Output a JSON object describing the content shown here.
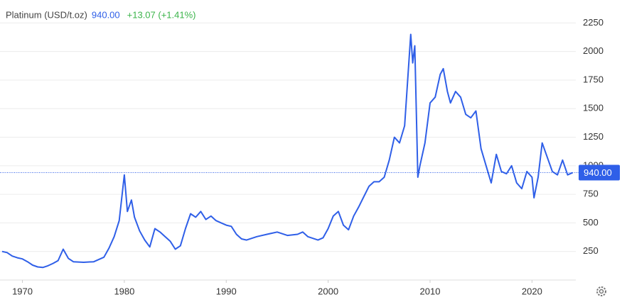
{
  "chart_data": {
    "type": "line",
    "title": "Platinum (USD/t.oz)",
    "last": {
      "value": 940,
      "label": "940.00"
    },
    "change": "+13.07 (+1.41%)",
    "xlim": [
      1967.8,
      2024.3
    ],
    "ylim": [
      0,
      2420
    ],
    "xticks": [
      1970,
      1980,
      1990,
      2000,
      2010,
      2020
    ],
    "yticks": [
      250,
      500,
      750,
      1000,
      1250,
      1500,
      1750,
      2000,
      2250
    ],
    "grid": true,
    "series": [
      {
        "name": "Platinum",
        "color": "#2f5fe8",
        "x": [
          1968,
          1968.5,
          1969,
          1969.5,
          1970,
          1970.5,
          1971,
          1971.5,
          1972,
          1972.5,
          1973,
          1973.5,
          1974,
          1974.5,
          1975,
          1976,
          1977,
          1978,
          1978.5,
          1979,
          1979.5,
          1980,
          1980.3,
          1980.7,
          1981,
          1981.5,
          1982,
          1982.5,
          1983,
          1983.5,
          1984,
          1984.5,
          1985,
          1985.5,
          1986,
          1986.5,
          1987,
          1987.5,
          1988,
          1988.5,
          1989,
          1989.5,
          1990,
          1990.5,
          1991,
          1991.5,
          1992,
          1993,
          1994,
          1995,
          1996,
          1997,
          1997.5,
          1998,
          1999,
          1999.5,
          2000,
          2000.5,
          2001,
          2001.5,
          2002,
          2002.5,
          2003,
          2004,
          2004.5,
          2005,
          2005.5,
          2006,
          2006.5,
          2007,
          2007.5,
          2008.1,
          2008.3,
          2008.5,
          2008.8,
          2009,
          2009.5,
          2010,
          2010.5,
          2011,
          2011.3,
          2011.7,
          2012,
          2012.5,
          2013,
          2013.5,
          2014,
          2014.5,
          2015,
          2015.5,
          2016,
          2016.5,
          2017,
          2017.5,
          2018,
          2018.5,
          2019,
          2019.5,
          2020,
          2020.2,
          2020.6,
          2021,
          2021.4,
          2022,
          2022.5,
          2023,
          2023.5,
          2024
        ],
        "values": [
          250,
          240,
          210,
          195,
          185,
          160,
          130,
          115,
          110,
          125,
          145,
          170,
          270,
          190,
          160,
          155,
          160,
          200,
          280,
          380,
          520,
          920,
          600,
          700,
          550,
          430,
          350,
          290,
          450,
          420,
          380,
          340,
          270,
          300,
          450,
          580,
          550,
          600,
          530,
          560,
          520,
          500,
          480,
          470,
          400,
          360,
          350,
          380,
          400,
          420,
          390,
          400,
          420,
          380,
          350,
          370,
          450,
          560,
          600,
          480,
          440,
          560,
          640,
          820,
          860,
          860,
          900,
          1050,
          1250,
          1200,
          1350,
          2150,
          1900,
          2050,
          900,
          1000,
          1200,
          1550,
          1600,
          1800,
          1850,
          1650,
          1550,
          1650,
          1600,
          1450,
          1420,
          1480,
          1150,
          1000,
          850,
          1100,
          950,
          930,
          1000,
          850,
          800,
          950,
          900,
          720,
          900,
          1200,
          1100,
          950,
          920,
          1050,
          920,
          940
        ]
      }
    ]
  }
}
